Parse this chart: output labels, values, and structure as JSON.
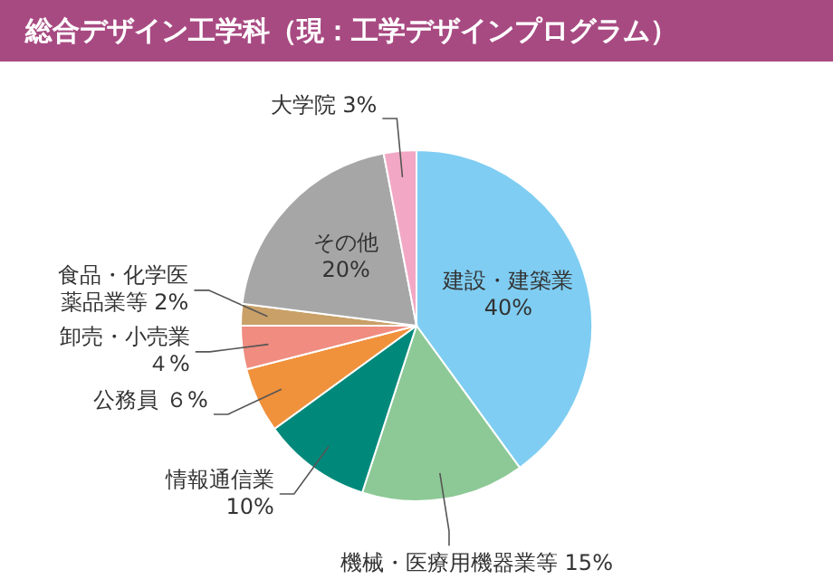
{
  "chart_data": {
    "type": "pie",
    "title": "総合デザイン工学科（現：工学デザインプログラム）",
    "categories": [
      "建設・建築業",
      "機械・医療用機器業等",
      "情報通信業",
      "公務員",
      "卸売・小売業",
      "食品・化学医薬品業等",
      "その他",
      "大学院"
    ],
    "values": [
      40,
      15,
      10,
      6,
      4,
      2,
      20,
      3
    ],
    "value_labels": [
      "40%",
      "15%",
      "10%",
      "６%",
      "４%",
      "2%",
      "20%",
      "3%"
    ],
    "colors": [
      "#7fcdf2",
      "#8dc996",
      "#00897b",
      "#f0913c",
      "#f08c80",
      "#c9a068",
      "#a6a6a6",
      "#f2a8c4"
    ]
  }
}
